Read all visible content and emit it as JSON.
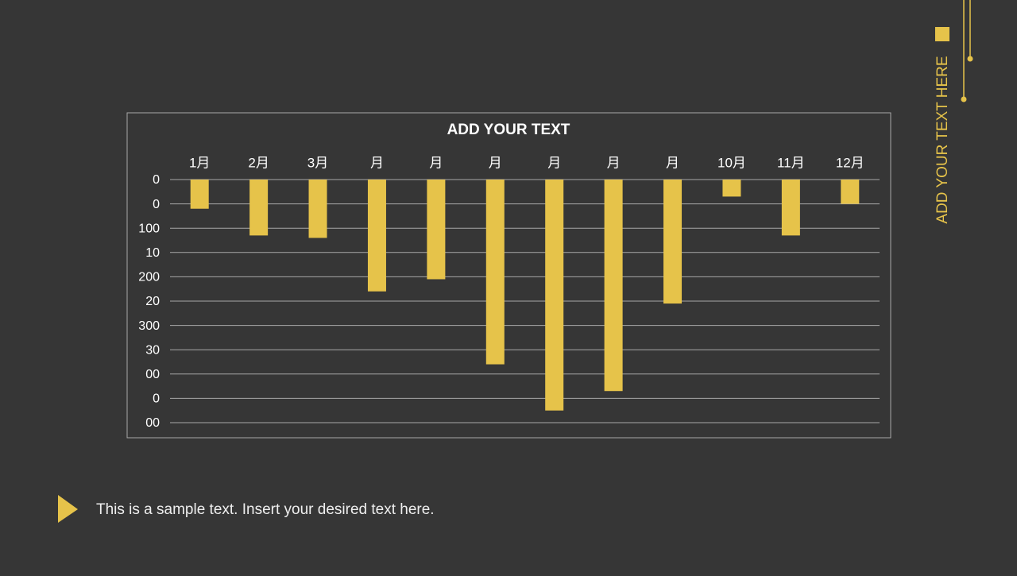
{
  "chart_data": {
    "type": "bar",
    "title": "ADD YOUR TEXT",
    "categories": [
      "1月",
      "2月",
      "3月",
      "月",
      "月",
      "月",
      "月",
      "月",
      "月",
      "10月",
      "11月",
      "12月"
    ],
    "values": [
      60,
      115,
      120,
      230,
      205,
      380,
      475,
      435,
      255,
      35,
      115,
      50
    ],
    "color": "#e6c34a",
    "ylim": [
      0,
      500
    ],
    "reversed": true,
    "yticks": [
      0,
      {
        "value": 50,
        "label": "0"
      },
      100,
      {
        "value": 150,
        "label": "10"
      },
      200,
      {
        "value": 250,
        "label": "20"
      },
      300,
      {
        "value": 350,
        "label": "30"
      },
      {
        "value": 400,
        "label": "00"
      },
      {
        "value": 450,
        "label": "0"
      },
      {
        "value": 500,
        "label": "00"
      }
    ],
    "grid": true
  },
  "side_text": "ADD YOUR TEXT HERE",
  "caption": "This is a sample text. Insert your desired text here."
}
